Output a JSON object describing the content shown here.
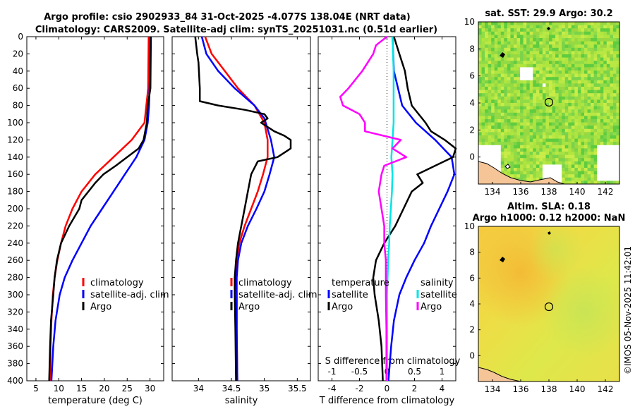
{
  "titles": {
    "line1": "Argo profile: csio 2902933_84 31-Oct-2025 -4.077S 138.04E (NRT data)",
    "line2": "Climatology: CARS2009. Satellite-adj clim: synTS_20251031.nc (0.51d earlier)",
    "sst": "sat. SST: 29.9 Argo: 30.2",
    "sla1": "Altim. SLA: 0.18",
    "sla2": "Argo h1000: 0.12 h2000: NaN",
    "watermark": "©IMOS 05-Nov-2025 11:42:01"
  },
  "colors": {
    "climatology": "#ff0000",
    "satellite": "#0000ff",
    "argo": "#000000",
    "sal_satellite": "#00e5e5",
    "sal_argo": "#ff00ff",
    "land": "#f5c597"
  },
  "chart_data": [
    {
      "type": "line",
      "title": "",
      "xlabel": "temperature (deg C)",
      "ylabel": "",
      "xlim": [
        3,
        33
      ],
      "ylim": [
        400,
        0
      ],
      "xticks": [
        "5",
        "10",
        "15",
        "20",
        "25",
        "30"
      ],
      "xtick_values": [
        5,
        10,
        15,
        20,
        25,
        30
      ],
      "yticks": [
        "0",
        "20",
        "40",
        "60",
        "80",
        "100",
        "120",
        "140",
        "160",
        "180",
        "200",
        "220",
        "240",
        "260",
        "280",
        "300",
        "320",
        "340",
        "360",
        "380",
        "400"
      ],
      "ytick_values": [
        0,
        20,
        40,
        60,
        80,
        100,
        120,
        140,
        160,
        180,
        200,
        220,
        240,
        260,
        280,
        300,
        320,
        340,
        360,
        380,
        400
      ],
      "legend": [
        "climatology",
        "satellite-adj. clim",
        "Argo"
      ],
      "series": [
        {
          "name": "climatology",
          "color": "#ff0000",
          "depth": [
            0,
            60,
            100,
            120,
            140,
            160,
            180,
            200,
            220,
            240,
            260,
            280,
            300,
            330,
            360,
            400
          ],
          "values": [
            29.7,
            29.6,
            28.8,
            26,
            22,
            18,
            15,
            13,
            11.5,
            10.5,
            9.7,
            9.1,
            8.7,
            8.4,
            8.2,
            8.1
          ]
        },
        {
          "name": "satellite-adj. clim",
          "color": "#0000ff",
          "depth": [
            0,
            40,
            80,
            100,
            120,
            140,
            160,
            180,
            200,
            220,
            240,
            260,
            280,
            300,
            330,
            360,
            400
          ],
          "values": [
            30.1,
            30,
            29.8,
            29.5,
            28.8,
            27,
            24.5,
            22,
            19.5,
            17,
            15,
            13,
            11.3,
            10.2,
            9.3,
            8.8,
            8.4
          ]
        },
        {
          "name": "Argo",
          "color": "#000000",
          "depth": [
            0,
            60,
            80,
            100,
            120,
            130,
            140,
            150,
            160,
            170,
            180,
            190,
            200,
            220,
            240,
            260,
            280,
            300,
            330,
            360,
            400
          ],
          "values": [
            30.2,
            30.1,
            29.5,
            29.3,
            28.6,
            27.5,
            25,
            22.5,
            19.8,
            18,
            16.5,
            15,
            14.5,
            12.3,
            10.5,
            9.6,
            9.1,
            8.8,
            8.3,
            8.1,
            7.9
          ]
        }
      ]
    },
    {
      "type": "line",
      "title": "",
      "xlabel": "salinity",
      "ylabel": "",
      "xlim": [
        33.6,
        35.7
      ],
      "ylim": [
        400,
        0
      ],
      "xticks": [
        "34",
        "34.5",
        "35",
        "35.5"
      ],
      "xtick_values": [
        34,
        34.5,
        35,
        35.5
      ],
      "legend": [
        "climatology",
        "satellite-adj. clim",
        "Argo"
      ],
      "series": [
        {
          "name": "climatology",
          "color": "#ff0000",
          "depth": [
            0,
            20,
            40,
            60,
            80,
            100,
            120,
            140,
            160,
            180,
            200,
            220,
            240,
            260,
            280,
            300,
            340,
            400
          ],
          "values": [
            34.1,
            34.2,
            34.4,
            34.6,
            34.85,
            35.0,
            35.05,
            35.05,
            34.98,
            34.9,
            34.8,
            34.7,
            34.62,
            34.58,
            34.57,
            34.58,
            34.58,
            34.59
          ]
        },
        {
          "name": "satellite-adj. clim",
          "color": "#0000ff",
          "depth": [
            0,
            20,
            40,
            60,
            80,
            95,
            120,
            140,
            160,
            180,
            200,
            220,
            240,
            260,
            280,
            300,
            340,
            400
          ],
          "values": [
            34.05,
            34.12,
            34.3,
            34.55,
            34.85,
            35.0,
            35.1,
            35.15,
            35.08,
            35.0,
            34.88,
            34.75,
            34.65,
            34.6,
            34.58,
            34.58,
            34.58,
            34.59
          ]
        },
        {
          "name": "Argo",
          "color": "#000000",
          "depth": [
            0,
            20,
            30,
            60,
            75,
            80,
            85,
            90,
            95,
            100,
            110,
            115,
            120,
            130,
            135,
            140,
            145,
            160,
            180,
            200,
            220,
            240,
            260,
            280,
            300,
            340,
            400
          ],
          "values": [
            33.95,
            33.98,
            34.0,
            34.02,
            34.02,
            34.3,
            34.7,
            35.0,
            35.05,
            34.95,
            35.15,
            35.3,
            35.4,
            35.4,
            35.3,
            35.2,
            34.9,
            34.8,
            34.75,
            34.7,
            34.65,
            34.6,
            34.57,
            34.55,
            34.55,
            34.56,
            34.57
          ]
        }
      ]
    },
    {
      "type": "line",
      "title": "",
      "xlabel": "T difference from climatology",
      "xlabel_top": "S difference from climatology",
      "xlim": [
        -5,
        5
      ],
      "ylim": [
        400,
        0
      ],
      "xticks": [
        "-4",
        "-2",
        "0",
        "2",
        "4"
      ],
      "xtick_values": [
        -4,
        -2,
        0,
        2,
        4
      ],
      "xticks_top": [
        "-1",
        "-0.5",
        "0",
        "0.5",
        "1"
      ],
      "xtick_top_values": [
        -1,
        -0.5,
        0,
        0.5,
        1
      ],
      "legend": {
        "temperature": [
          "satellite",
          "Argo"
        ],
        "salinity": [
          "satellite",
          "Argo"
        ]
      },
      "legend_titles": [
        "temperature",
        "salinity"
      ],
      "series": [
        {
          "name": "temperature satellite",
          "color": "#0000ff",
          "depth": [
            0,
            40,
            80,
            100,
            120,
            140,
            160,
            180,
            200,
            220,
            240,
            260,
            280,
            300,
            330,
            360,
            400
          ],
          "values": [
            0.4,
            0.5,
            1.1,
            2.1,
            3.5,
            4.7,
            4.9,
            4.4,
            3.8,
            3.2,
            2.7,
            2.0,
            1.4,
            0.9,
            0.5,
            0.3,
            0.1
          ]
        },
        {
          "name": "temperature Argo",
          "color": "#000000",
          "depth": [
            0,
            20,
            40,
            60,
            80,
            100,
            110,
            120,
            130,
            140,
            150,
            160,
            170,
            180,
            200,
            220,
            240,
            260,
            280,
            300,
            330,
            360,
            400
          ],
          "values": [
            0.5,
            0.9,
            1.3,
            1.5,
            1.8,
            2.8,
            3.2,
            4.2,
            5.0,
            4.8,
            3.5,
            2.2,
            2.6,
            1.8,
            1.2,
            0.6,
            -0.2,
            -0.8,
            -1.0,
            -0.9,
            -0.6,
            -0.4,
            -0.3
          ]
        },
        {
          "name": "salinity satellite",
          "color": "#00e5e5",
          "depth": [
            0,
            40,
            60,
            80,
            100,
            120,
            140,
            160,
            180,
            200,
            220,
            240,
            260,
            280,
            300,
            340,
            400
          ],
          "values": [
            0.1,
            0.12,
            0.12,
            0.12,
            0.12,
            0.1,
            0.08,
            0.1,
            0.09,
            0.07,
            0.05,
            0.04,
            0.02,
            0.01,
            0.0,
            0.0,
            0.0
          ]
        },
        {
          "name": "salinity Argo",
          "color": "#ff00ff",
          "depth": [
            0,
            10,
            20,
            40,
            60,
            70,
            80,
            90,
            100,
            110,
            120,
            130,
            140,
            150,
            160,
            180,
            200,
            220,
            240,
            260,
            280,
            300,
            340,
            400
          ],
          "values": [
            0.0,
            -0.2,
            -0.25,
            -0.45,
            -0.7,
            -0.85,
            -0.8,
            -0.5,
            -0.4,
            -0.4,
            0.25,
            0.1,
            0.35,
            -0.05,
            -0.1,
            -0.15,
            -0.1,
            -0.05,
            -0.05,
            -0.02,
            -0.02,
            -0.02,
            -0.01,
            -0.01
          ]
        }
      ]
    },
    {
      "type": "heatmap",
      "title": "sat. SST: 29.9 Argo: 30.2",
      "xlim": [
        133,
        143
      ],
      "ylim": [
        -2,
        10
      ],
      "xticks": [
        "134",
        "136",
        "138",
        "140",
        "142"
      ],
      "xtick_values": [
        134,
        136,
        138,
        140,
        142
      ],
      "yticks": [
        "0",
        "2",
        "4",
        "6",
        "8",
        "10"
      ],
      "ytick_values": [
        0,
        2,
        4,
        6,
        8,
        10
      ],
      "profile_location": [
        138.0,
        4.0
      ]
    },
    {
      "type": "heatmap",
      "title": "Altim. SLA: 0.18",
      "subtitle": "Argo h1000: 0.12 h2000: NaN",
      "xlim": [
        133,
        143
      ],
      "ylim": [
        -2,
        10
      ],
      "xticks": [
        "134",
        "136",
        "138",
        "140",
        "142"
      ],
      "xtick_values": [
        134,
        136,
        138,
        140,
        142
      ],
      "yticks": [
        "0",
        "2",
        "4",
        "6",
        "8",
        "10"
      ],
      "ytick_values": [
        0,
        2,
        4,
        6,
        8,
        10
      ],
      "profile_location": [
        138.0,
        4.0
      ]
    }
  ]
}
